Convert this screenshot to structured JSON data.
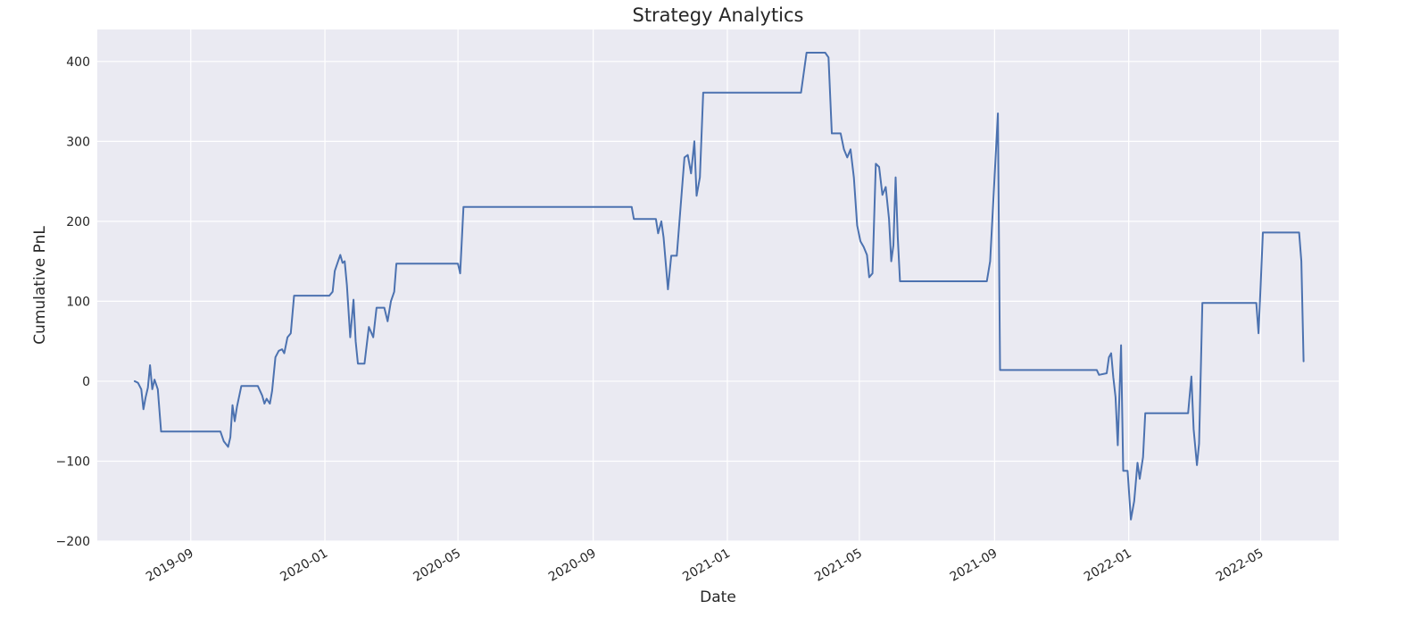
{
  "chart_data": {
    "type": "line",
    "title": "Strategy Analytics",
    "xlabel": "Date",
    "ylabel": "Cumulative PnL",
    "xlim": [
      "2019-06-08",
      "2022-07-11"
    ],
    "ylim": [
      -200,
      440
    ],
    "x_ticks": [
      "2019-09",
      "2020-01",
      "2020-05",
      "2020-09",
      "2021-01",
      "2021-05",
      "2021-09",
      "2022-01",
      "2022-05"
    ],
    "y_ticks": [
      -200,
      -100,
      0,
      100,
      200,
      300,
      400
    ],
    "grid": true,
    "legend": "none",
    "colors": {
      "background": "#eaeaf2",
      "grid": "#ffffff",
      "line": "#4c72b0"
    },
    "series": [
      {
        "values": [
          [
            "2019-07-12",
            0
          ],
          [
            "2019-07-15",
            -2
          ],
          [
            "2019-07-18",
            -10
          ],
          [
            "2019-07-20",
            -35
          ],
          [
            "2019-07-22",
            -20
          ],
          [
            "2019-07-24",
            -8
          ],
          [
            "2019-07-26",
            20
          ],
          [
            "2019-07-28",
            -10
          ],
          [
            "2019-07-30",
            2
          ],
          [
            "2019-08-02",
            -10
          ],
          [
            "2019-08-05",
            -63
          ],
          [
            "2019-09-28",
            -63
          ],
          [
            "2019-10-01",
            -75
          ],
          [
            "2019-10-05",
            -82
          ],
          [
            "2019-10-07",
            -70
          ],
          [
            "2019-10-09",
            -30
          ],
          [
            "2019-10-11",
            -50
          ],
          [
            "2019-10-13",
            -32
          ],
          [
            "2019-10-17",
            -6
          ],
          [
            "2019-11-01",
            -6
          ],
          [
            "2019-11-05",
            -18
          ],
          [
            "2019-11-07",
            -28
          ],
          [
            "2019-11-09",
            -22
          ],
          [
            "2019-11-12",
            -28
          ],
          [
            "2019-11-14",
            -12
          ],
          [
            "2019-11-17",
            30
          ],
          [
            "2019-11-20",
            38
          ],
          [
            "2019-11-23",
            40
          ],
          [
            "2019-11-25",
            35
          ],
          [
            "2019-11-28",
            55
          ],
          [
            "2019-12-01",
            60
          ],
          [
            "2019-12-04",
            107
          ],
          [
            "2020-01-05",
            107
          ],
          [
            "2020-01-08",
            112
          ],
          [
            "2020-01-10",
            138
          ],
          [
            "2020-01-13",
            150
          ],
          [
            "2020-01-15",
            158
          ],
          [
            "2020-01-17",
            148
          ],
          [
            "2020-01-19",
            150
          ],
          [
            "2020-01-21",
            120
          ],
          [
            "2020-01-24",
            55
          ],
          [
            "2020-01-27",
            102
          ],
          [
            "2020-01-29",
            50
          ],
          [
            "2020-01-31",
            22
          ],
          [
            "2020-02-06",
            22
          ],
          [
            "2020-02-10",
            68
          ],
          [
            "2020-02-14",
            55
          ],
          [
            "2020-02-17",
            92
          ],
          [
            "2020-02-24",
            92
          ],
          [
            "2020-02-27",
            75
          ],
          [
            "2020-03-01",
            100
          ],
          [
            "2020-03-04",
            112
          ],
          [
            "2020-03-06",
            147
          ],
          [
            "2020-05-01",
            147
          ],
          [
            "2020-05-03",
            135
          ],
          [
            "2020-05-06",
            218
          ],
          [
            "2020-10-06",
            218
          ],
          [
            "2020-10-08",
            203
          ],
          [
            "2020-10-28",
            203
          ],
          [
            "2020-10-30",
            185
          ],
          [
            "2020-11-02",
            200
          ],
          [
            "2020-11-04",
            180
          ],
          [
            "2020-11-08",
            115
          ],
          [
            "2020-11-11",
            157
          ],
          [
            "2020-11-16",
            157
          ],
          [
            "2020-11-19",
            210
          ],
          [
            "2020-11-23",
            280
          ],
          [
            "2020-11-26",
            283
          ],
          [
            "2020-11-29",
            260
          ],
          [
            "2020-12-02",
            300
          ],
          [
            "2020-12-04",
            232
          ],
          [
            "2020-12-07",
            255
          ],
          [
            "2020-12-10",
            361
          ],
          [
            "2021-03-09",
            361
          ],
          [
            "2021-03-14",
            411
          ],
          [
            "2021-03-31",
            411
          ],
          [
            "2021-04-03",
            405
          ],
          [
            "2021-04-06",
            310
          ],
          [
            "2021-04-14",
            310
          ],
          [
            "2021-04-17",
            290
          ],
          [
            "2021-04-20",
            280
          ],
          [
            "2021-04-23",
            290
          ],
          [
            "2021-04-26",
            255
          ],
          [
            "2021-04-29",
            195
          ],
          [
            "2021-05-02",
            175
          ],
          [
            "2021-05-05",
            168
          ],
          [
            "2021-05-08",
            158
          ],
          [
            "2021-05-10",
            130
          ],
          [
            "2021-05-13",
            135
          ],
          [
            "2021-05-16",
            272
          ],
          [
            "2021-05-19",
            268
          ],
          [
            "2021-05-22",
            233
          ],
          [
            "2021-05-25",
            243
          ],
          [
            "2021-05-28",
            203
          ],
          [
            "2021-05-30",
            150
          ],
          [
            "2021-06-01",
            170
          ],
          [
            "2021-06-03",
            255
          ],
          [
            "2021-06-05",
            180
          ],
          [
            "2021-06-07",
            125
          ],
          [
            "2021-08-25",
            125
          ],
          [
            "2021-08-28",
            150
          ],
          [
            "2021-09-04",
            335
          ],
          [
            "2021-09-06",
            14
          ],
          [
            "2021-12-03",
            14
          ],
          [
            "2021-12-05",
            8
          ],
          [
            "2021-12-12",
            10
          ],
          [
            "2021-12-14",
            30
          ],
          [
            "2021-12-16",
            35
          ],
          [
            "2021-12-18",
            5
          ],
          [
            "2021-12-20",
            -20
          ],
          [
            "2021-12-22",
            -80
          ],
          [
            "2021-12-25",
            45
          ],
          [
            "2021-12-27",
            -112
          ],
          [
            "2021-12-31",
            -112
          ],
          [
            "2022-01-03",
            -173
          ],
          [
            "2022-01-06",
            -150
          ],
          [
            "2022-01-09",
            -102
          ],
          [
            "2022-01-11",
            -122
          ],
          [
            "2022-01-14",
            -95
          ],
          [
            "2022-01-16",
            -40
          ],
          [
            "2022-02-24",
            -40
          ],
          [
            "2022-02-27",
            6
          ],
          [
            "2022-03-01",
            -60
          ],
          [
            "2022-03-04",
            -105
          ],
          [
            "2022-03-06",
            -78
          ],
          [
            "2022-03-09",
            98
          ],
          [
            "2022-04-27",
            98
          ],
          [
            "2022-04-29",
            60
          ],
          [
            "2022-05-01",
            120
          ],
          [
            "2022-05-03",
            186
          ],
          [
            "2022-06-05",
            186
          ],
          [
            "2022-06-07",
            150
          ],
          [
            "2022-06-09",
            25
          ]
        ]
      }
    ]
  }
}
